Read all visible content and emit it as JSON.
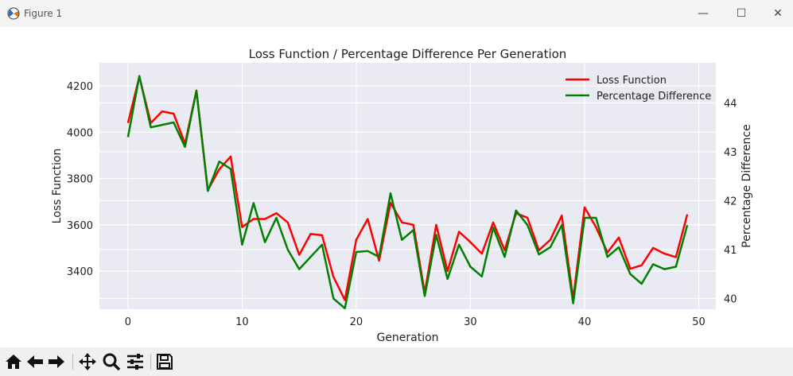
{
  "window": {
    "title": "Figure 1"
  },
  "chart_data": {
    "type": "line",
    "title": "Loss Function / Percentage Difference Per Generation",
    "xlabel": "Generation",
    "ylabel": "Loss Function",
    "ylabel_right": "Percentage Difference",
    "x": [
      0,
      1,
      2,
      3,
      4,
      5,
      6,
      7,
      8,
      9,
      10,
      11,
      12,
      13,
      14,
      15,
      16,
      17,
      18,
      19,
      20,
      21,
      22,
      23,
      24,
      25,
      26,
      27,
      28,
      29,
      30,
      31,
      32,
      33,
      34,
      35,
      36,
      37,
      38,
      39,
      40,
      41,
      42,
      43,
      44,
      45,
      46,
      47,
      48,
      49
    ],
    "xlim": [
      -2.5,
      51.5
    ],
    "ylim_left": [
      3235,
      4300
    ],
    "ylim_right": [
      39.78,
      44.82
    ],
    "xticks": [
      0,
      10,
      20,
      30,
      40,
      50
    ],
    "yticks_left": [
      3400,
      3600,
      3800,
      4000,
      4200
    ],
    "yticks_right": [
      40,
      41,
      42,
      43,
      44
    ],
    "series": [
      {
        "name": "Loss Function",
        "color": "#ff0000",
        "axis": "left",
        "values": [
          4040,
          4240,
          4040,
          4090,
          4080,
          3950,
          4180,
          3750,
          3840,
          3895,
          3590,
          3625,
          3625,
          3650,
          3610,
          3470,
          3560,
          3555,
          3375,
          3275,
          3535,
          3625,
          3445,
          3695,
          3610,
          3600,
          3305,
          3600,
          3400,
          3570,
          3525,
          3475,
          3610,
          3490,
          3650,
          3630,
          3490,
          3535,
          3640,
          3280,
          3675,
          3590,
          3480,
          3545,
          3410,
          3425,
          3500,
          3475,
          3460,
          3645
        ]
      },
      {
        "name": "Percentage Difference",
        "color": "#008000",
        "axis": "right",
        "values": [
          43.3,
          44.55,
          43.5,
          43.55,
          43.6,
          43.1,
          44.25,
          42.2,
          42.8,
          42.65,
          41.1,
          41.95,
          41.15,
          41.65,
          41.0,
          40.6,
          40.85,
          41.1,
          40.0,
          39.8,
          40.95,
          40.97,
          40.85,
          42.15,
          41.2,
          41.4,
          40.05,
          41.3,
          40.4,
          41.1,
          40.65,
          40.45,
          41.45,
          40.85,
          41.8,
          41.5,
          40.9,
          41.05,
          41.5,
          39.9,
          41.65,
          41.65,
          40.85,
          41.05,
          40.5,
          40.3,
          40.7,
          40.6,
          40.65,
          41.5
        ]
      }
    ],
    "legend": "top-right",
    "grid": true
  },
  "toolbar": {
    "buttons": [
      "home-icon",
      "back-arrow-icon",
      "forward-arrow-icon",
      "pan-move-icon",
      "zoom-magnifier-icon",
      "configure-subplots-icon",
      "save-disk-icon"
    ]
  }
}
